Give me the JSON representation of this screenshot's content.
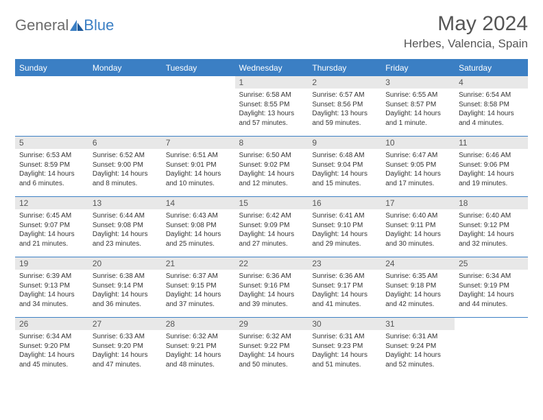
{
  "logo": {
    "text1": "General",
    "text2": "Blue"
  },
  "title": "May 2024",
  "subtitle": "Herbes, Valencia, Spain",
  "colors": {
    "primary": "#3b7fc4",
    "header_bg": "#3b7fc4",
    "header_fg": "#ffffff",
    "daynum_bg": "#e8e8e8",
    "text": "#333333",
    "title": "#555555",
    "logo_gray": "#6b6b6b"
  },
  "weekdays": [
    "Sunday",
    "Monday",
    "Tuesday",
    "Wednesday",
    "Thursday",
    "Friday",
    "Saturday"
  ],
  "weeks": [
    [
      {
        "n": "",
        "sr": "",
        "ss": "",
        "dl": ""
      },
      {
        "n": "",
        "sr": "",
        "ss": "",
        "dl": ""
      },
      {
        "n": "",
        "sr": "",
        "ss": "",
        "dl": ""
      },
      {
        "n": "1",
        "sr": "6:58 AM",
        "ss": "8:55 PM",
        "dl": "13 hours and 57 minutes."
      },
      {
        "n": "2",
        "sr": "6:57 AM",
        "ss": "8:56 PM",
        "dl": "13 hours and 59 minutes."
      },
      {
        "n": "3",
        "sr": "6:55 AM",
        "ss": "8:57 PM",
        "dl": "14 hours and 1 minute."
      },
      {
        "n": "4",
        "sr": "6:54 AM",
        "ss": "8:58 PM",
        "dl": "14 hours and 4 minutes."
      }
    ],
    [
      {
        "n": "5",
        "sr": "6:53 AM",
        "ss": "8:59 PM",
        "dl": "14 hours and 6 minutes."
      },
      {
        "n": "6",
        "sr": "6:52 AM",
        "ss": "9:00 PM",
        "dl": "14 hours and 8 minutes."
      },
      {
        "n": "7",
        "sr": "6:51 AM",
        "ss": "9:01 PM",
        "dl": "14 hours and 10 minutes."
      },
      {
        "n": "8",
        "sr": "6:50 AM",
        "ss": "9:02 PM",
        "dl": "14 hours and 12 minutes."
      },
      {
        "n": "9",
        "sr": "6:48 AM",
        "ss": "9:04 PM",
        "dl": "14 hours and 15 minutes."
      },
      {
        "n": "10",
        "sr": "6:47 AM",
        "ss": "9:05 PM",
        "dl": "14 hours and 17 minutes."
      },
      {
        "n": "11",
        "sr": "6:46 AM",
        "ss": "9:06 PM",
        "dl": "14 hours and 19 minutes."
      }
    ],
    [
      {
        "n": "12",
        "sr": "6:45 AM",
        "ss": "9:07 PM",
        "dl": "14 hours and 21 minutes."
      },
      {
        "n": "13",
        "sr": "6:44 AM",
        "ss": "9:08 PM",
        "dl": "14 hours and 23 minutes."
      },
      {
        "n": "14",
        "sr": "6:43 AM",
        "ss": "9:08 PM",
        "dl": "14 hours and 25 minutes."
      },
      {
        "n": "15",
        "sr": "6:42 AM",
        "ss": "9:09 PM",
        "dl": "14 hours and 27 minutes."
      },
      {
        "n": "16",
        "sr": "6:41 AM",
        "ss": "9:10 PM",
        "dl": "14 hours and 29 minutes."
      },
      {
        "n": "17",
        "sr": "6:40 AM",
        "ss": "9:11 PM",
        "dl": "14 hours and 30 minutes."
      },
      {
        "n": "18",
        "sr": "6:40 AM",
        "ss": "9:12 PM",
        "dl": "14 hours and 32 minutes."
      }
    ],
    [
      {
        "n": "19",
        "sr": "6:39 AM",
        "ss": "9:13 PM",
        "dl": "14 hours and 34 minutes."
      },
      {
        "n": "20",
        "sr": "6:38 AM",
        "ss": "9:14 PM",
        "dl": "14 hours and 36 minutes."
      },
      {
        "n": "21",
        "sr": "6:37 AM",
        "ss": "9:15 PM",
        "dl": "14 hours and 37 minutes."
      },
      {
        "n": "22",
        "sr": "6:36 AM",
        "ss": "9:16 PM",
        "dl": "14 hours and 39 minutes."
      },
      {
        "n": "23",
        "sr": "6:36 AM",
        "ss": "9:17 PM",
        "dl": "14 hours and 41 minutes."
      },
      {
        "n": "24",
        "sr": "6:35 AM",
        "ss": "9:18 PM",
        "dl": "14 hours and 42 minutes."
      },
      {
        "n": "25",
        "sr": "6:34 AM",
        "ss": "9:19 PM",
        "dl": "14 hours and 44 minutes."
      }
    ],
    [
      {
        "n": "26",
        "sr": "6:34 AM",
        "ss": "9:20 PM",
        "dl": "14 hours and 45 minutes."
      },
      {
        "n": "27",
        "sr": "6:33 AM",
        "ss": "9:20 PM",
        "dl": "14 hours and 47 minutes."
      },
      {
        "n": "28",
        "sr": "6:32 AM",
        "ss": "9:21 PM",
        "dl": "14 hours and 48 minutes."
      },
      {
        "n": "29",
        "sr": "6:32 AM",
        "ss": "9:22 PM",
        "dl": "14 hours and 50 minutes."
      },
      {
        "n": "30",
        "sr": "6:31 AM",
        "ss": "9:23 PM",
        "dl": "14 hours and 51 minutes."
      },
      {
        "n": "31",
        "sr": "6:31 AM",
        "ss": "9:24 PM",
        "dl": "14 hours and 52 minutes."
      },
      {
        "n": "",
        "sr": "",
        "ss": "",
        "dl": ""
      }
    ]
  ],
  "labels": {
    "sunrise": "Sunrise:",
    "sunset": "Sunset:",
    "daylight": "Daylight:"
  }
}
